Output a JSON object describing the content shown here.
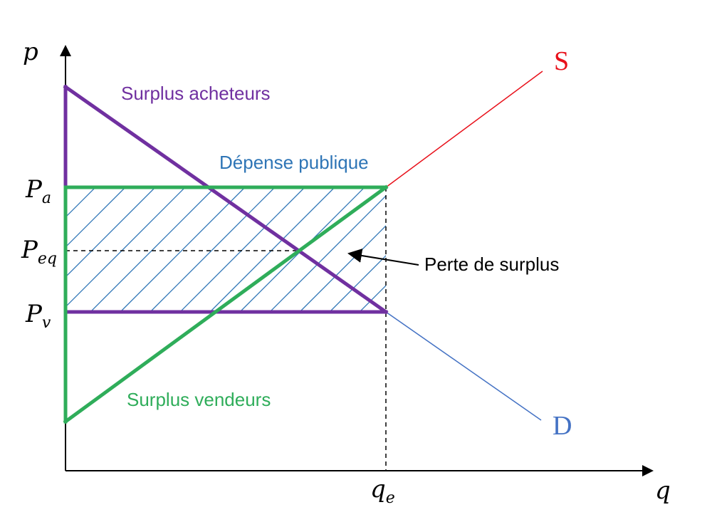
{
  "axes": {
    "y_label": "p",
    "x_label": "q"
  },
  "price_labels": {
    "pa": {
      "main": "P",
      "sub": "a"
    },
    "peq": {
      "main": "P",
      "sub": "eq"
    },
    "pv": {
      "main": "P",
      "sub": "v"
    }
  },
  "quantity_labels": {
    "qe": {
      "main": "q",
      "sub": "e"
    }
  },
  "curves": {
    "supply": {
      "label": "S",
      "color": "#e8101a"
    },
    "demand": {
      "label": "D",
      "color": "#4472c4"
    }
  },
  "regions": {
    "buyers_surplus": {
      "label": "Surplus acheteurs",
      "color": "#7030a0"
    },
    "public_spending": {
      "label": "Dépense publique",
      "color": "#2e75b6"
    },
    "sellers_surplus": {
      "label": "Surplus vendeurs",
      "color": "#2fad5a"
    },
    "surplus_loss": {
      "label": "Perte de surplus"
    }
  }
}
